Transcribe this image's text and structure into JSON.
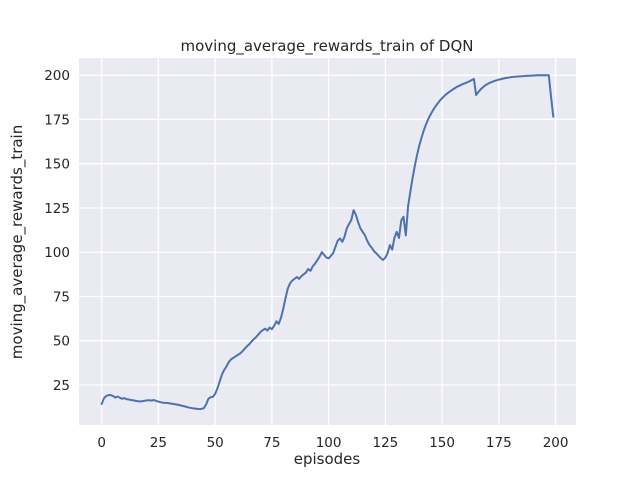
{
  "chart_data": {
    "type": "line",
    "title": "moving_average_rewards_train of DQN",
    "xlabel": "episodes",
    "ylabel": "moving_average_rewards_train",
    "x_ticks": [
      0,
      25,
      50,
      75,
      100,
      125,
      150,
      175,
      200
    ],
    "y_ticks": [
      25,
      50,
      75,
      100,
      125,
      150,
      175,
      200
    ],
    "xlim": [
      -10,
      209
    ],
    "ylim": [
      2.4,
      209.7
    ],
    "grid": true,
    "legend": "none",
    "style": {
      "figure_bg": "#ffffff",
      "axes_bg": "#EAEAF2",
      "grid_color": "#FFFFFF",
      "line_color": "#4C72B0",
      "text_color": "#262626",
      "line_width": 2
    },
    "series": [
      {
        "name": "moving_average_rewards_train",
        "x_start": 0,
        "x_step": 1,
        "values": [
          14.3,
          17.5,
          18.8,
          19.3,
          19.3,
          18.8,
          17.9,
          18.5,
          17.8,
          17.2,
          17.6,
          17.0,
          16.8,
          16.5,
          16.3,
          16.0,
          15.8,
          15.7,
          15.9,
          16.1,
          16.3,
          16.4,
          16.2,
          16.5,
          16.0,
          15.6,
          15.3,
          15.0,
          14.9,
          14.8,
          14.6,
          14.4,
          14.2,
          14.0,
          13.7,
          13.4,
          13.1,
          12.8,
          12.4,
          12.1,
          11.9,
          11.7,
          11.5,
          11.4,
          11.5,
          11.9,
          14.0,
          17.2,
          18.1,
          18.3,
          20.0,
          23.0,
          27.0,
          31.0,
          33.5,
          35.5,
          38.0,
          39.5,
          40.3,
          41.2,
          42.0,
          42.8,
          44.0,
          45.5,
          46.8,
          48.0,
          49.5,
          50.8,
          52.0,
          53.5,
          55.0,
          56.0,
          56.8,
          55.8,
          57.5,
          56.5,
          58.5,
          61.0,
          59.5,
          63.0,
          68.0,
          74.0,
          79.5,
          82.5,
          84.0,
          85.0,
          86.0,
          85.0,
          86.5,
          87.5,
          88.5,
          90.5,
          89.5,
          92.0,
          93.5,
          95.5,
          97.5,
          100.0,
          98.5,
          97.0,
          96.5,
          98.0,
          99.5,
          103.0,
          106.5,
          107.8,
          105.9,
          108.7,
          113.5,
          116.0,
          118.2,
          123.8,
          121.0,
          117.0,
          113.5,
          111.5,
          109.6,
          106.5,
          104.1,
          102.5,
          100.5,
          99.4,
          98.0,
          96.6,
          95.6,
          97.0,
          99.5,
          104.0,
          101.5,
          108.0,
          111.5,
          108.0,
          118.0,
          120.0,
          109.5,
          126.0,
          134.0,
          142.0,
          149.0,
          155.0,
          160.5,
          165.0,
          169.0,
          172.5,
          175.5,
          178.0,
          180.2,
          182.2,
          184.0,
          185.6,
          187.0,
          188.3,
          189.4,
          190.4,
          191.3,
          192.2,
          193.0,
          193.7,
          194.3,
          194.9,
          195.4,
          195.9,
          196.5,
          197.2,
          197.9,
          188.8,
          190.5,
          192.0,
          193.2,
          194.2,
          195.0,
          195.7,
          196.2,
          196.7,
          197.1,
          197.5,
          197.8,
          198.1,
          198.4,
          198.6,
          198.8,
          199.0,
          199.1,
          199.2,
          199.3,
          199.4,
          199.5,
          199.6,
          199.7,
          199.7,
          199.8,
          199.8,
          199.9,
          199.9,
          200.0,
          200.0,
          200.0,
          200.0,
          188.0,
          176.5
        ]
      }
    ]
  }
}
